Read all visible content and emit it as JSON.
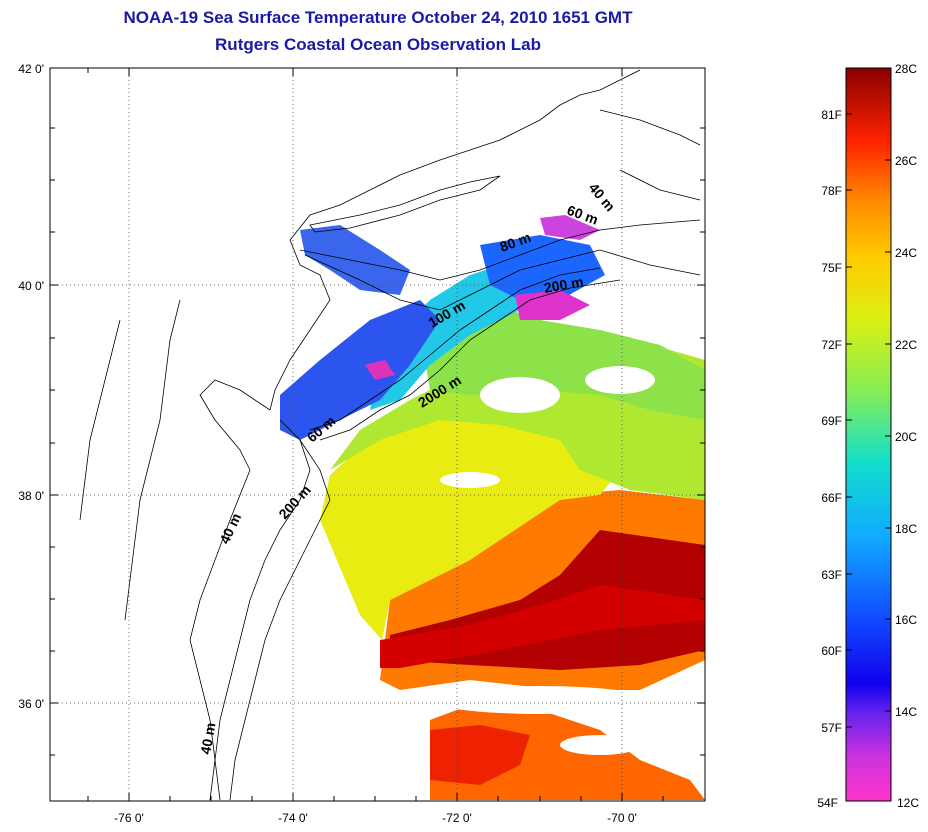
{
  "title": {
    "line1": "NOAA-19 Sea Surface Temperature October 24, 2010 1651 GMT",
    "line2": "Rutgers Coastal Ocean Observation Lab"
  },
  "map": {
    "lat_labels": [
      "42 0'",
      "40 0'",
      "38 0'",
      "36 0'"
    ],
    "lon_labels": [
      "-76 0'",
      "-74 0'",
      "-72 0'",
      "-70 0'"
    ],
    "isobath_labels": [
      "40 m",
      "60 m",
      "80 m",
      "200 m",
      "100 m",
      "2000 m",
      "60 m",
      "200 m",
      "40 m",
      "40 m"
    ]
  },
  "colorbar": {
    "celsius_labels": [
      "28C",
      "26C",
      "24C",
      "22C",
      "20C",
      "18C",
      "16C",
      "14C",
      "12C"
    ],
    "fahrenheit_labels": [
      "81F",
      "78F",
      "75F",
      "72F",
      "69F",
      "66F",
      "63F",
      "60F",
      "57F",
      "54F"
    ],
    "colors": [
      "#ff33cc",
      "#aa33dd",
      "#2200ee",
      "#1144ff",
      "#2299ff",
      "#11ddee",
      "#55ee88",
      "#aaee33",
      "#eeee00",
      "#ffbb00",
      "#ff7700",
      "#ff2200",
      "#dd0000",
      "#880000"
    ]
  }
}
